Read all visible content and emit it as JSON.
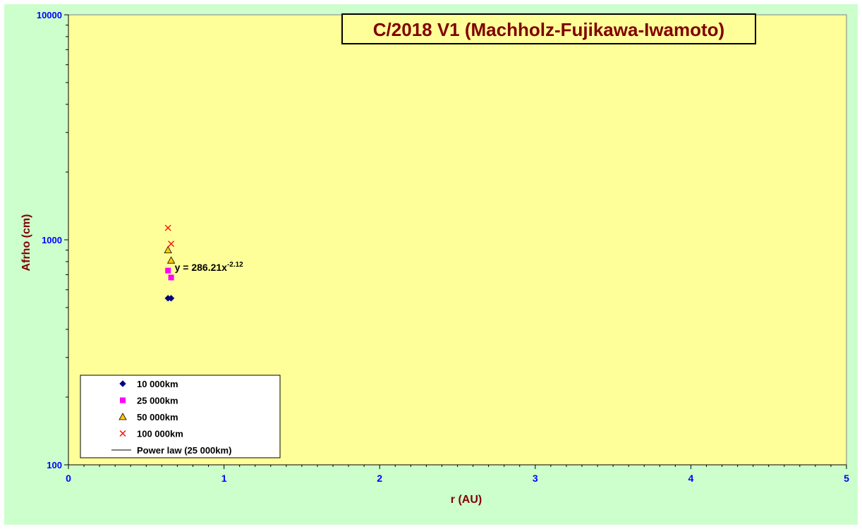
{
  "chart_data": {
    "type": "scatter",
    "title": "C/2018 V1 (Machholz-Fujikawa-Iwamoto)",
    "xlabel": "r (AU)",
    "ylabel": "Afrho (cm)",
    "xlim": [
      0,
      5
    ],
    "ylim": [
      100,
      10000
    ],
    "y_scale": "log",
    "x_ticks": [
      "0",
      "1",
      "2",
      "3",
      "4",
      "5"
    ],
    "y_ticks": [
      "100",
      "1000",
      "10000"
    ],
    "grid": false,
    "legend_position": "bottom-left",
    "series": [
      {
        "name": "10 000km",
        "marker": "diamond",
        "color": "#000080",
        "x": [
          0.64,
          0.66
        ],
        "y": [
          550,
          550
        ]
      },
      {
        "name": "25 000km",
        "marker": "square",
        "color": "#ff00ff",
        "x": [
          0.64,
          0.66
        ],
        "y": [
          730,
          680
        ]
      },
      {
        "name": "50 000km",
        "marker": "triangle",
        "color": "#ffcc00",
        "x": [
          0.64,
          0.66
        ],
        "y": [
          900,
          810
        ]
      },
      {
        "name": "100 000km",
        "marker": "x",
        "color": "#ff0000",
        "x": [
          0.64,
          0.66
        ],
        "y": [
          1130,
          960
        ]
      },
      {
        "name": "Power law (25 000km)",
        "marker": "line",
        "color": "#000000",
        "x": [],
        "y": []
      }
    ],
    "annotation": {
      "prefix": "y = 286.21x",
      "exponent": "-2.12",
      "x": 0.66,
      "y": 760
    }
  },
  "colors": {
    "outer_background": "#ccffcc",
    "plot_background": "#ffff99",
    "tick_label": "#0000ff",
    "axis_label": "#800000",
    "title": "#800000"
  }
}
